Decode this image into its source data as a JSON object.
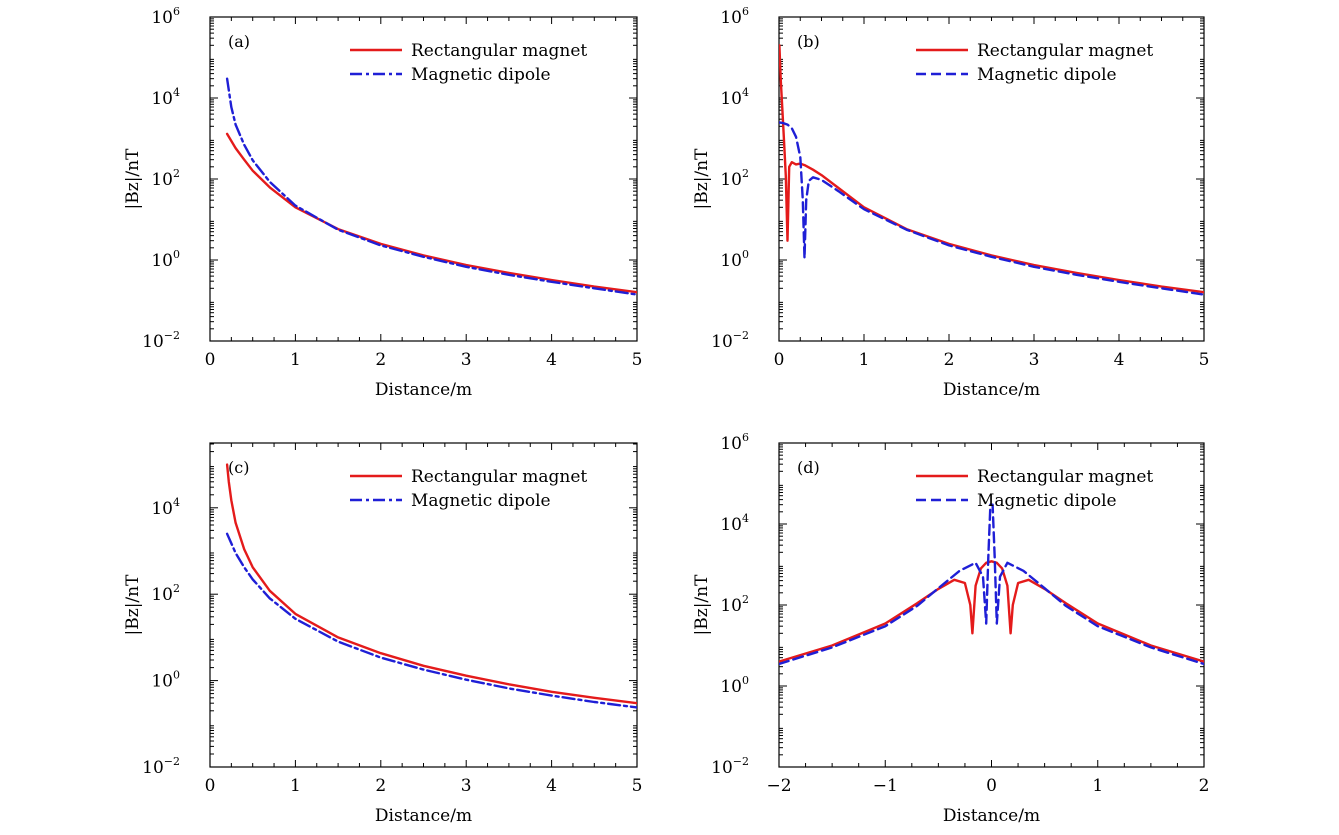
{
  "colors": {
    "rect": "#e41b1b",
    "dipole": "#1f1fd6"
  },
  "chart_data": [
    {
      "panel": "(a)",
      "type": "line",
      "xlabel": "Distance/m",
      "ylabel": "|Bz|/nT",
      "xlim": [
        0,
        5
      ],
      "ylog": true,
      "ylim_exp": [
        -2,
        6
      ],
      "xticks": [
        "0",
        "1",
        "2",
        "3",
        "4",
        "5"
      ],
      "yticks": [
        {
          "base": "10",
          "exp": "−2"
        },
        {
          "base": "10",
          "exp": "0"
        },
        {
          "base": "10",
          "exp": "2"
        },
        {
          "base": "10",
          "exp": "4"
        },
        {
          "base": "10",
          "exp": "6"
        }
      ],
      "legend_position": "top-right",
      "series": [
        {
          "name": "Rectangular magnet",
          "color": "#e41b1b",
          "style": "solid",
          "x": [
            0.2,
            0.3,
            0.4,
            0.5,
            0.7,
            1.0,
            1.5,
            2.0,
            2.5,
            3.0,
            3.5,
            4.0,
            4.5,
            5.0
          ],
          "y": [
            1300,
            580,
            300,
            160,
            62,
            20,
            5.8,
            2.5,
            1.3,
            0.75,
            0.48,
            0.32,
            0.22,
            0.16
          ]
        },
        {
          "name": "Magnetic dipole",
          "color": "#1f1fd6",
          "style": "dashdot",
          "x": [
            0.2,
            0.25,
            0.3,
            0.4,
            0.5,
            0.7,
            1.0,
            1.5,
            2.0,
            2.5,
            3.0,
            3.5,
            4.0,
            4.5,
            5.0
          ],
          "y": [
            30000,
            6000,
            2200,
            700,
            290,
            85,
            22,
            5.6,
            2.3,
            1.2,
            0.68,
            0.43,
            0.29,
            0.2,
            0.14
          ]
        }
      ]
    },
    {
      "panel": "(b)",
      "type": "line",
      "xlabel": "Distance/m",
      "ylabel": "|Bz|/nT",
      "xlim": [
        0,
        5
      ],
      "ylog": true,
      "ylim_exp": [
        -2,
        6
      ],
      "xticks": [
        "0",
        "1",
        "2",
        "3",
        "4",
        "5"
      ],
      "yticks": [
        {
          "base": "10",
          "exp": "−2"
        },
        {
          "base": "10",
          "exp": "0"
        },
        {
          "base": "10",
          "exp": "2"
        },
        {
          "base": "10",
          "exp": "4"
        },
        {
          "base": "10",
          "exp": "6"
        }
      ],
      "legend_position": "top-right",
      "series": [
        {
          "name": "Rectangular magnet",
          "color": "#e41b1b",
          "style": "solid",
          "x": [
            0.005,
            0.02,
            0.04,
            0.06,
            0.08,
            0.1,
            0.12,
            0.15,
            0.2,
            0.25,
            0.3,
            0.4,
            0.5,
            0.7,
            1.0,
            1.5,
            2.0,
            2.5,
            3.0,
            3.5,
            4.0,
            4.5,
            5.0
          ],
          "y": [
            200000,
            30000,
            5000,
            800,
            120,
            3,
            200,
            260,
            230,
            240,
            220,
            170,
            125,
            60,
            20,
            5.8,
            2.5,
            1.3,
            0.75,
            0.48,
            0.32,
            0.22,
            0.16
          ]
        },
        {
          "name": "Magnetic dipole",
          "color": "#1f1fd6",
          "style": "dashed",
          "x": [
            0.0,
            0.05,
            0.1,
            0.15,
            0.2,
            0.25,
            0.28,
            0.3,
            0.32,
            0.35,
            0.4,
            0.5,
            0.7,
            1.0,
            1.5,
            2.0,
            2.5,
            3.0,
            3.5,
            4.0,
            4.5,
            5.0
          ],
          "y": [
            2500,
            2400,
            2200,
            1800,
            1100,
            350,
            30,
            1.1,
            30,
            90,
            110,
            95,
            50,
            18,
            5.6,
            2.3,
            1.2,
            0.68,
            0.43,
            0.29,
            0.2,
            0.14
          ]
        }
      ]
    },
    {
      "panel": "(c)",
      "type": "line",
      "xlabel": "Distance/m",
      "ylabel": "|Bz|/nT",
      "xlim": [
        0,
        5
      ],
      "ylog": true,
      "ylim_exp": [
        -2,
        5.5
      ],
      "xticks": [
        "0",
        "1",
        "2",
        "3",
        "4",
        "5"
      ],
      "yticks": [
        {
          "base": "10",
          "exp": "−2"
        },
        {
          "base": "10",
          "exp": "0"
        },
        {
          "base": "10",
          "exp": "2"
        },
        {
          "base": "10",
          "exp": "4"
        }
      ],
      "legend_position": "top-right",
      "series": [
        {
          "name": "Rectangular magnet",
          "color": "#e41b1b",
          "style": "solid",
          "x": [
            0.2,
            0.22,
            0.25,
            0.3,
            0.4,
            0.5,
            0.7,
            1.0,
            1.5,
            2.0,
            2.5,
            3.0,
            3.5,
            4.0,
            4.5,
            5.0
          ],
          "y": [
            100000,
            40000,
            15000,
            4500,
            1100,
            420,
            120,
            35,
            10,
            4.3,
            2.2,
            1.3,
            0.82,
            0.55,
            0.4,
            0.3
          ]
        },
        {
          "name": "Magnetic dipole",
          "color": "#1f1fd6",
          "style": "dashdot",
          "x": [
            0.2,
            0.3,
            0.4,
            0.5,
            0.7,
            1.0,
            1.5,
            2.0,
            2.5,
            3.0,
            3.5,
            4.0,
            4.5,
            5.0
          ],
          "y": [
            2500,
            900,
            420,
            220,
            80,
            27,
            8,
            3.4,
            1.8,
            1.05,
            0.66,
            0.45,
            0.32,
            0.24
          ]
        }
      ]
    },
    {
      "panel": "(d)",
      "type": "line",
      "xlabel": "Distance/m",
      "ylabel": "|Bz|/nT",
      "xlim": [
        -2,
        2
      ],
      "ylog": true,
      "ylim_exp": [
        -2,
        6
      ],
      "xticks": [
        "−2",
        "−1",
        "0",
        "1",
        "2"
      ],
      "yticks": [
        {
          "base": "10",
          "exp": "−2"
        },
        {
          "base": "10",
          "exp": "0"
        },
        {
          "base": "10",
          "exp": "2"
        },
        {
          "base": "10",
          "exp": "4"
        },
        {
          "base": "10",
          "exp": "6"
        }
      ],
      "legend_position": "top-right",
      "series": [
        {
          "name": "Rectangular magnet",
          "color": "#e41b1b",
          "style": "solid",
          "x": [
            -2.0,
            -1.5,
            -1.0,
            -0.7,
            -0.5,
            -0.35,
            -0.25,
            -0.2,
            -0.18,
            -0.15,
            -0.1,
            -0.05,
            0.0,
            0.05,
            0.1,
            0.15,
            0.18,
            0.2,
            0.25,
            0.35,
            0.5,
            0.7,
            1.0,
            1.5,
            2.0
          ],
          "y": [
            4,
            10,
            35,
            110,
            250,
            420,
            350,
            100,
            20,
            300,
            800,
            1100,
            1200,
            1100,
            800,
            300,
            20,
            100,
            350,
            420,
            250,
            110,
            35,
            10,
            4
          ]
        },
        {
          "name": "Magnetic dipole",
          "color": "#1f1fd6",
          "style": "dashed",
          "x": [
            -2.0,
            -1.5,
            -1.0,
            -0.7,
            -0.5,
            -0.3,
            -0.15,
            -0.08,
            -0.05,
            -0.03,
            -0.01,
            0.0,
            0.01,
            0.03,
            0.05,
            0.08,
            0.15,
            0.3,
            0.5,
            0.7,
            1.0,
            1.5,
            2.0
          ],
          "y": [
            3.5,
            9,
            30,
            95,
            260,
            700,
            1100,
            500,
            35,
            1500,
            30000,
            30000,
            30000,
            1500,
            35,
            500,
            1100,
            700,
            260,
            95,
            30,
            9,
            3.5
          ]
        }
      ]
    }
  ]
}
